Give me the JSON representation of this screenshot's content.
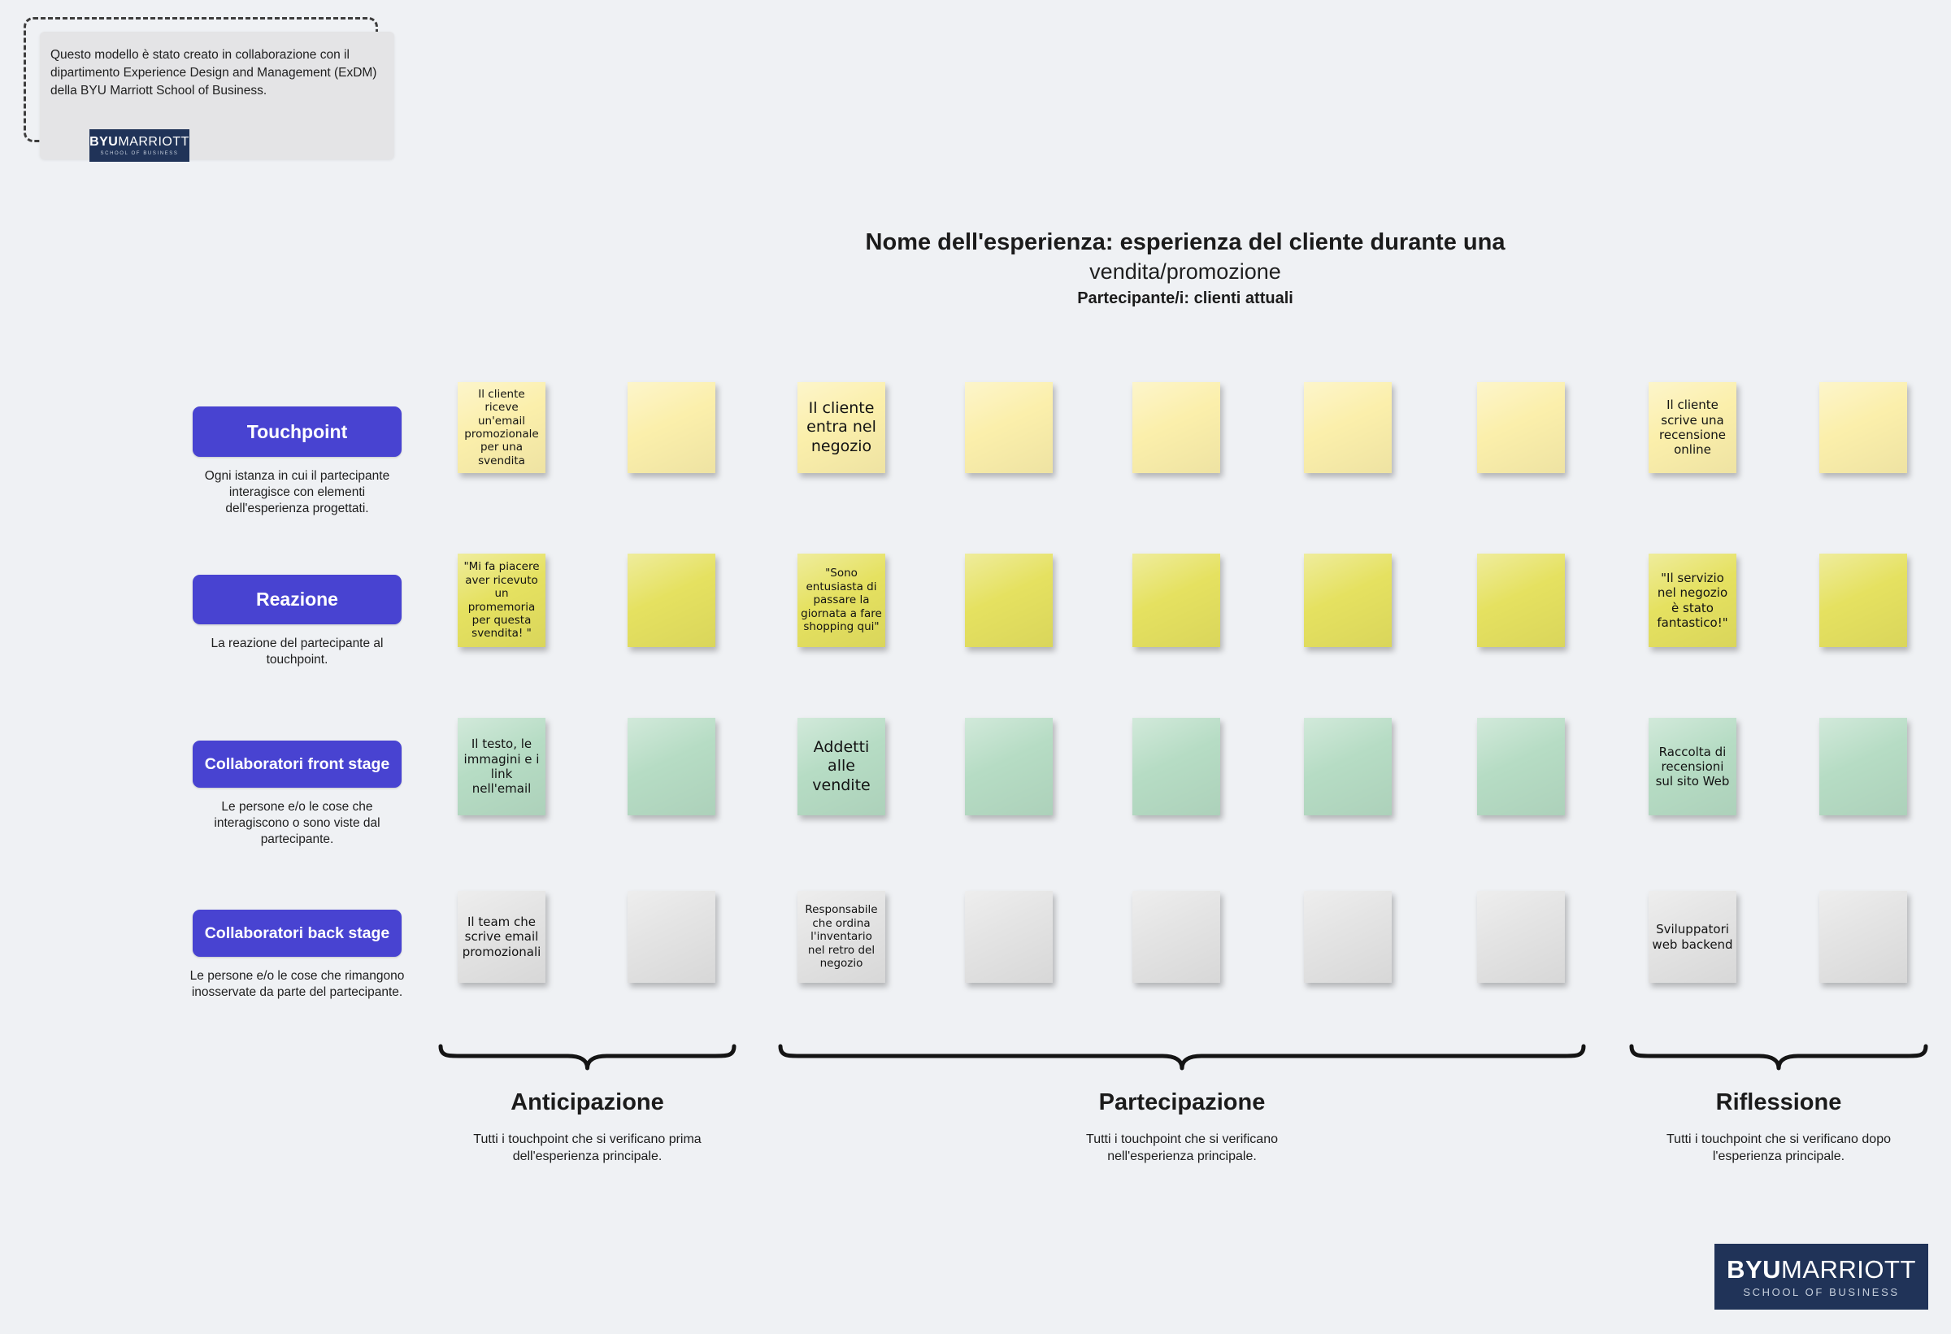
{
  "info_box": {
    "text": "Questo modello è stato creato in collaborazione con il dipartimento Experience Design and Management (ExDM) della BYU Marriott School of Business.",
    "logo": {
      "byu": "BYU",
      "marriott": "MARRIOTT",
      "school": "SCHOOL OF BUSINESS"
    }
  },
  "header": {
    "title_line1": "Nome dell'esperienza: esperienza del cliente durante una",
    "title_line2": "vendita/promozione",
    "participants": "Partecipante/i: clienti attuali"
  },
  "rows": [
    {
      "id": "touchpoint",
      "label": "Touchpoint",
      "description": "Ogni istanza in cui il partecipante interagisce con elementi dell'esperienza progettati.",
      "color": "#fbefab",
      "notes": [
        "Il cliente riceve un'email promozionale per una svendita",
        "",
        "Il cliente entra nel negozio",
        "",
        "",
        "",
        "",
        "Il cliente scrive una recensione online",
        ""
      ]
    },
    {
      "id": "reazione",
      "label": "Reazione",
      "description": "La reazione del partecipante al touchpoint.",
      "color": "#e5e160",
      "notes": [
        "\"Mi fa piacere aver ricevuto un promemoria per questa svendita! \"",
        "",
        "\"Sono entusiasta di passare la giornata a fare shopping qui\"",
        "",
        "",
        "",
        "",
        "\"Il servizio nel negozio è stato fantastico!\"",
        ""
      ]
    },
    {
      "id": "collaboratori-front-stage",
      "label": "Collaboratori front stage",
      "description": "Le persone e/o le cose che interagiscono o sono viste dal partecipante.",
      "color": "#b6dcc4",
      "notes": [
        "Il testo, le immagini e i link nell'email",
        "",
        "Addetti alle vendite",
        "",
        "",
        "",
        "",
        "Raccolta di recensioni sul sito Web",
        ""
      ]
    },
    {
      "id": "collaboratori-back-stage",
      "label": "Collaboratori back stage",
      "description": "Le persone e/o le cose che rimangono inosservate da parte del partecipante.",
      "color": "#e3e3e3",
      "notes": [
        "Il team che scrive email promozionali",
        "",
        "Responsabile che ordina l'inventario nel retro del negozio",
        "",
        "",
        "",
        "",
        "Sviluppatori web backend",
        ""
      ]
    }
  ],
  "phases": [
    {
      "id": "anticipazione",
      "label": "Anticipazione",
      "description": "Tutti i touchpoint che si verificano prima dell'esperienza principale.",
      "col_start": 0,
      "col_end": 1
    },
    {
      "id": "partecipazione",
      "label": "Partecipazione",
      "description": "Tutti i touchpoint che si verificano nell'esperienza principale.",
      "col_start": 2,
      "col_end": 6
    },
    {
      "id": "riflessione",
      "label": "Riflessione",
      "description": "Tutti i touchpoint che si verificano dopo l'esperienza principale.",
      "col_start": 7,
      "col_end": 8
    }
  ],
  "footer_logo": {
    "byu": "BYU",
    "marriott": "MARRIOTT",
    "school": "SCHOOL OF BUSINESS"
  },
  "colors": {
    "background": "#eff1f4",
    "label_pill": "#4843d1",
    "navy_logo": "#203358",
    "note_touchpoint": "#fbefab",
    "note_reazione": "#e5e160",
    "note_front_stage": "#b6dcc4",
    "note_back_stage": "#e3e3e3"
  }
}
